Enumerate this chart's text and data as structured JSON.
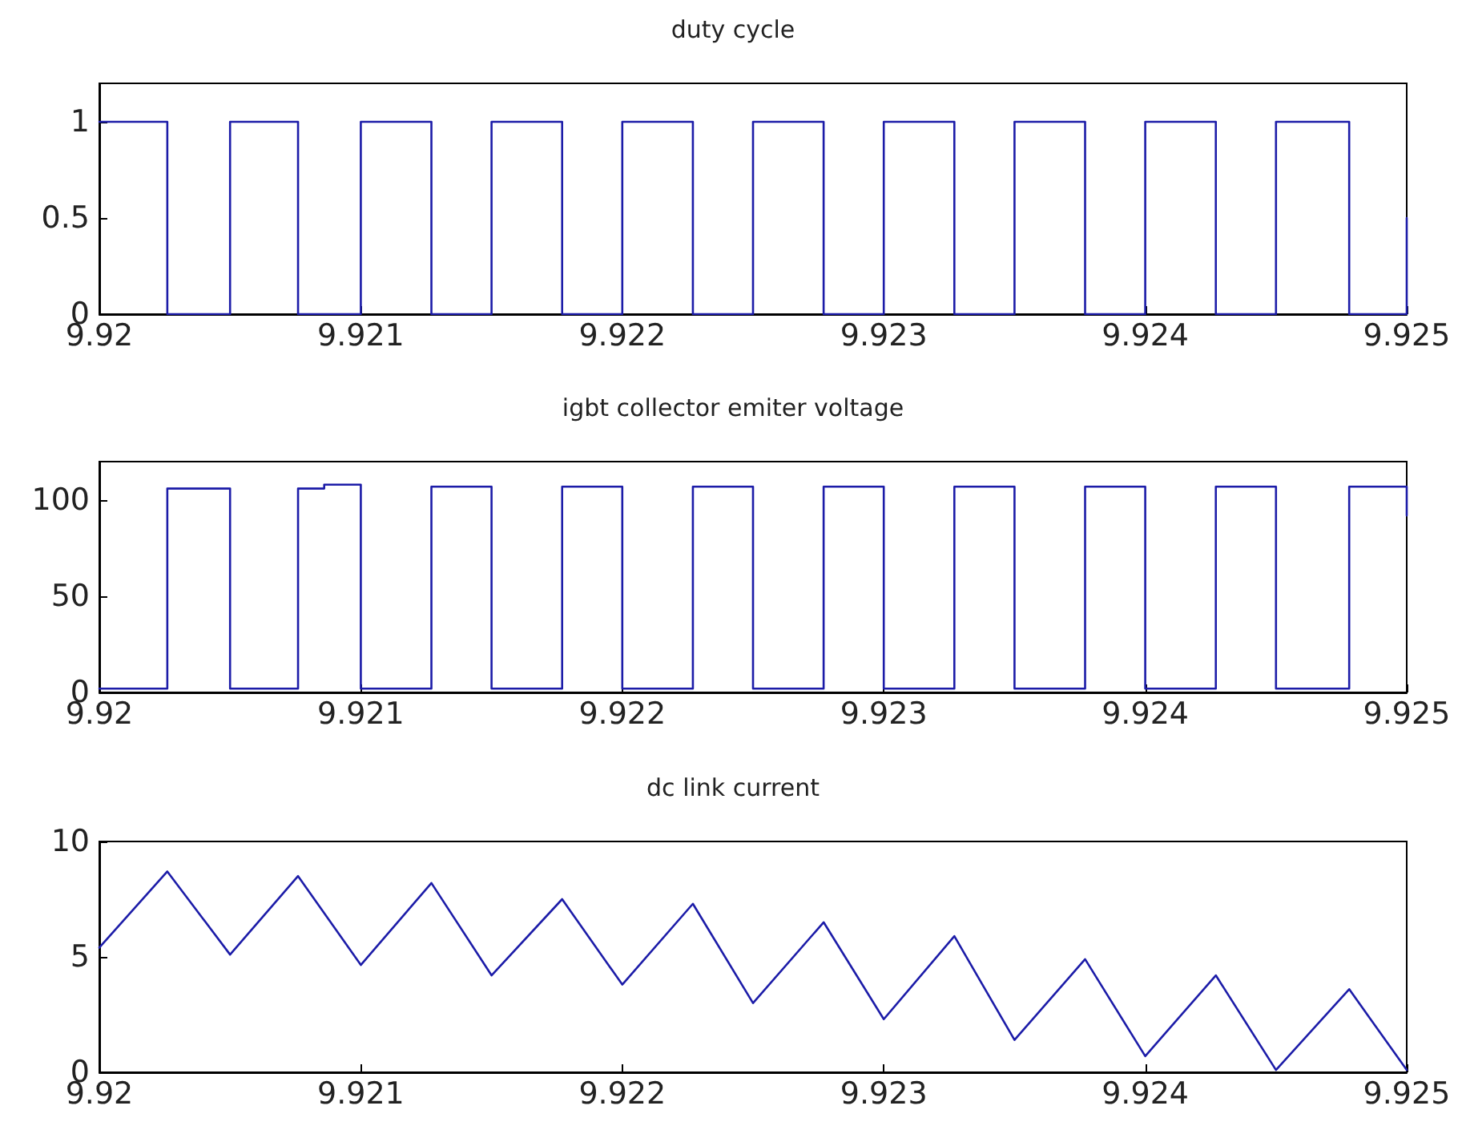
{
  "chart_data": [
    {
      "type": "step",
      "title": "duty cycle",
      "xlim": [
        9.92,
        9.925
      ],
      "xticks": [
        9.92,
        9.921,
        9.922,
        9.923,
        9.924,
        9.925
      ],
      "ylim": [
        0,
        1.2
      ],
      "yticks": [
        0,
        0.5,
        1
      ],
      "marker": "none",
      "x": [
        9.92,
        9.92026,
        9.9205,
        9.92076,
        9.921,
        9.92127,
        9.9215,
        9.92177,
        9.922,
        9.92227,
        9.9225,
        9.92277,
        9.923,
        9.92327,
        9.9235,
        9.92377,
        9.924,
        9.92427,
        9.9245,
        9.92478,
        9.925
      ],
      "series": [
        {
          "color": "#1c1ca8",
          "values": [
            1,
            0,
            1,
            0,
            1,
            0,
            1,
            0,
            1,
            0,
            1,
            0,
            1,
            0,
            1,
            0,
            1,
            0,
            1,
            0,
            0.5
          ]
        }
      ]
    },
    {
      "type": "step",
      "title": "igbt collector emiter voltage",
      "xlim": [
        9.92,
        9.925
      ],
      "xticks": [
        9.92,
        9.921,
        9.922,
        9.923,
        9.924,
        9.925
      ],
      "ylim": [
        0,
        120
      ],
      "yticks": [
        0,
        50,
        100
      ],
      "marker": "none",
      "x": [
        9.92,
        9.92026,
        9.9205,
        9.92076,
        9.92086,
        9.921,
        9.92127,
        9.9215,
        9.92177,
        9.922,
        9.92227,
        9.9225,
        9.92277,
        9.923,
        9.92327,
        9.9235,
        9.92377,
        9.924,
        9.92427,
        9.9245,
        9.92478,
        9.925
      ],
      "series": [
        {
          "color": "#1c1ca8",
          "values": [
            2,
            106,
            2,
            106,
            108,
            2,
            107,
            2,
            107,
            2,
            107,
            2,
            107,
            2,
            107,
            2,
            107,
            2,
            107,
            2,
            107,
            92
          ]
        }
      ]
    },
    {
      "type": "line",
      "title": "dc link current",
      "xlim": [
        9.92,
        9.925
      ],
      "xticks": [
        9.92,
        9.921,
        9.922,
        9.923,
        9.924,
        9.925
      ],
      "ylim": [
        0,
        10
      ],
      "yticks": [
        0,
        5,
        10
      ],
      "marker": "none",
      "x": [
        9.92,
        9.92026,
        9.9205,
        9.92076,
        9.921,
        9.92127,
        9.9215,
        9.92177,
        9.922,
        9.92227,
        9.9225,
        9.92277,
        9.923,
        9.92327,
        9.9235,
        9.92377,
        9.924,
        9.92427,
        9.9245,
        9.92478,
        9.925
      ],
      "series": [
        {
          "color": "#1c1ca8",
          "values": [
            5.4,
            8.7,
            5.1,
            8.5,
            4.65,
            8.2,
            4.2,
            7.5,
            3.8,
            7.3,
            3.0,
            6.5,
            2.3,
            5.9,
            1.4,
            4.9,
            0.7,
            4.2,
            0.1,
            3.6,
            0.1
          ]
        }
      ]
    }
  ]
}
